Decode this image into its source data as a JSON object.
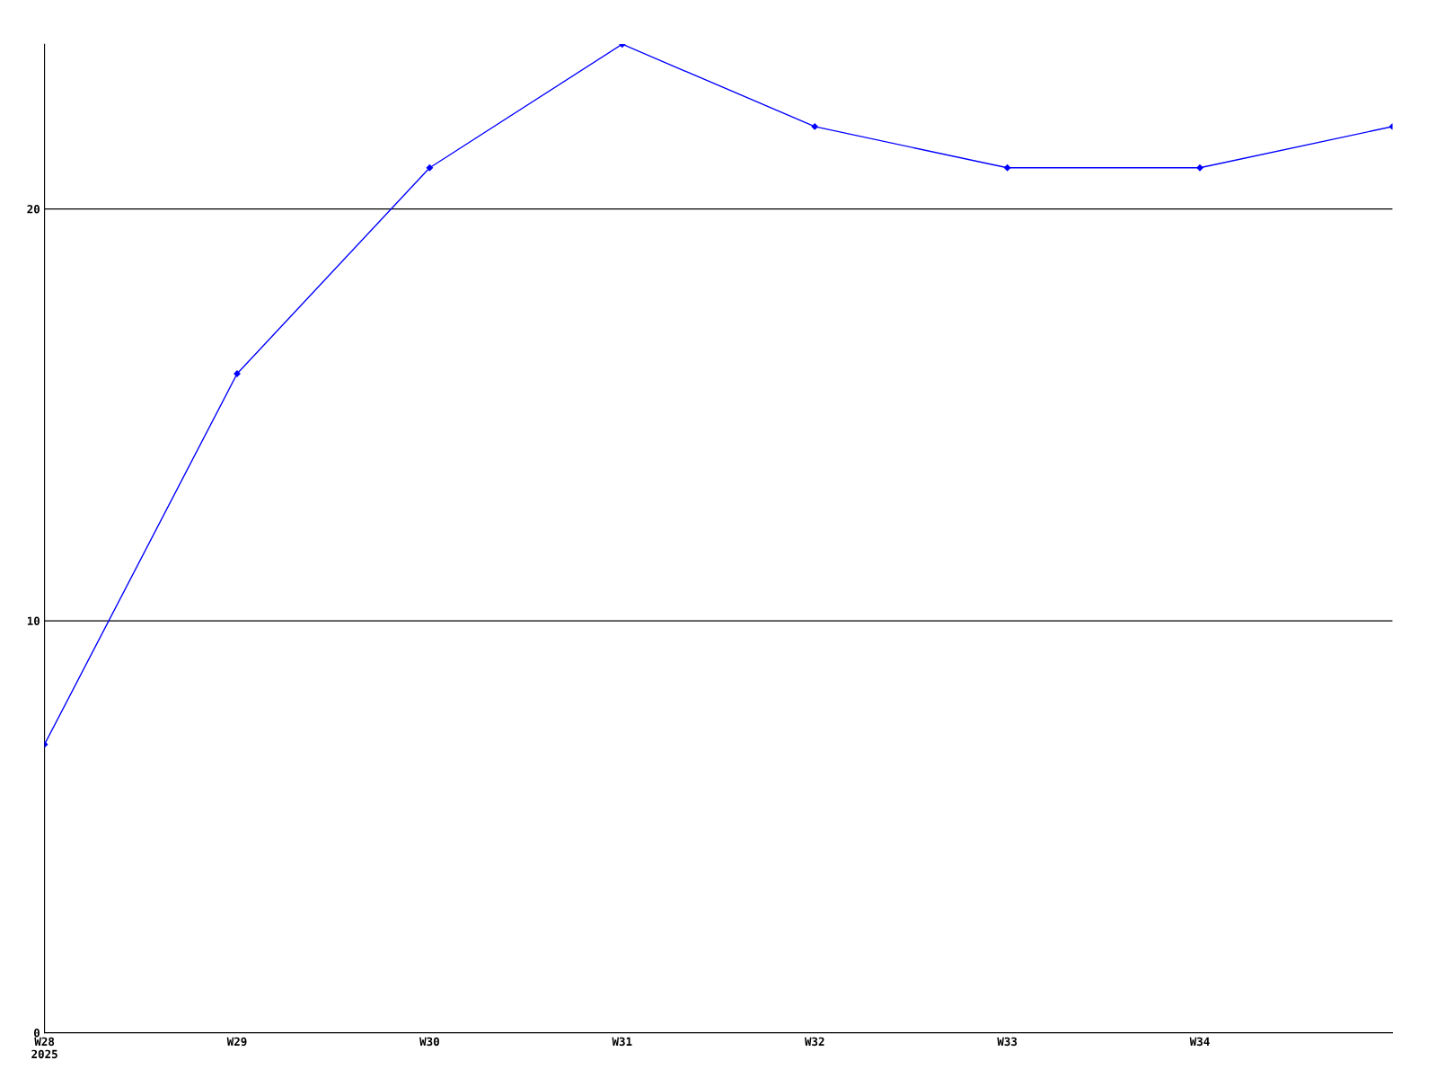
{
  "chart_data": {
    "type": "line",
    "categories": [
      "W28\n2025",
      "W29",
      "W30",
      "W31",
      "W32",
      "W33",
      "W34",
      null
    ],
    "series": [
      {
        "color": "#0000ff",
        "values": [
          7,
          16,
          21,
          24,
          22,
          21,
          21,
          22
        ]
      }
    ],
    "ylim": [
      0,
      24
    ],
    "yticks": [
      0,
      10,
      20
    ],
    "grid": "y",
    "marker": "diamond",
    "line_style": "solid",
    "legend": false
  }
}
